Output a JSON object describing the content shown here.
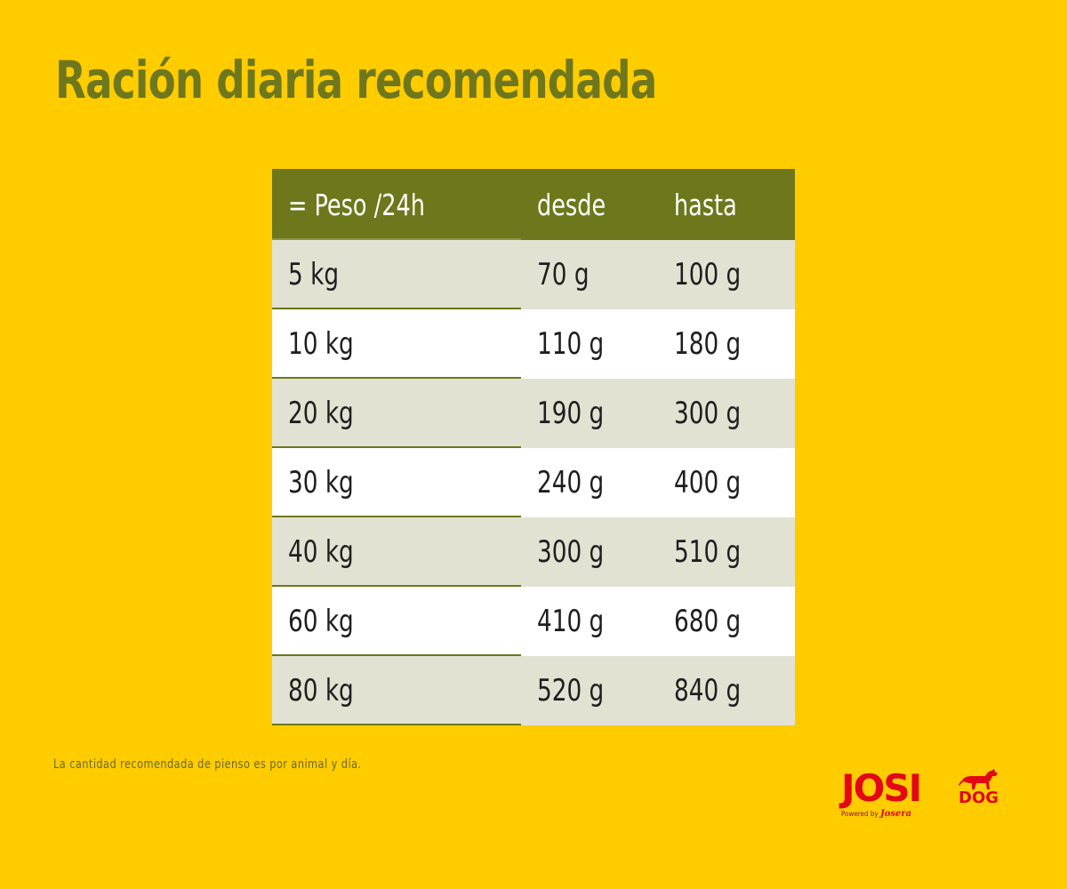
{
  "title": "Ración diaria recomendada",
  "table": {
    "headers": [
      "= Peso /24h",
      "desde",
      "hasta"
    ],
    "rows": [
      [
        "5 kg",
        "70 g",
        "100 g"
      ],
      [
        "10 kg",
        "110 g",
        "180 g"
      ],
      [
        "20 kg",
        "190 g",
        "300 g"
      ],
      [
        "30 kg",
        "240 g",
        "400 g"
      ],
      [
        "40 kg",
        "300 g",
        "510 g"
      ],
      [
        "60 kg",
        "410 g",
        "680 g"
      ],
      [
        "80 kg",
        "520 g",
        "840 g"
      ]
    ]
  },
  "footnote": "La cantidad recomendada de pienso es por animal y día.",
  "logo": {
    "name": "JOSI",
    "suffix": "DOG",
    "powered_by": "Powered by",
    "brand": "Josera",
    "icon": "dog-icon"
  },
  "colors": {
    "background": "#FFCC00",
    "accent": "#6E771B",
    "row_shade": "#E2E2D3",
    "row_white": "#FFFFFF",
    "logo_red": "#E30613"
  }
}
